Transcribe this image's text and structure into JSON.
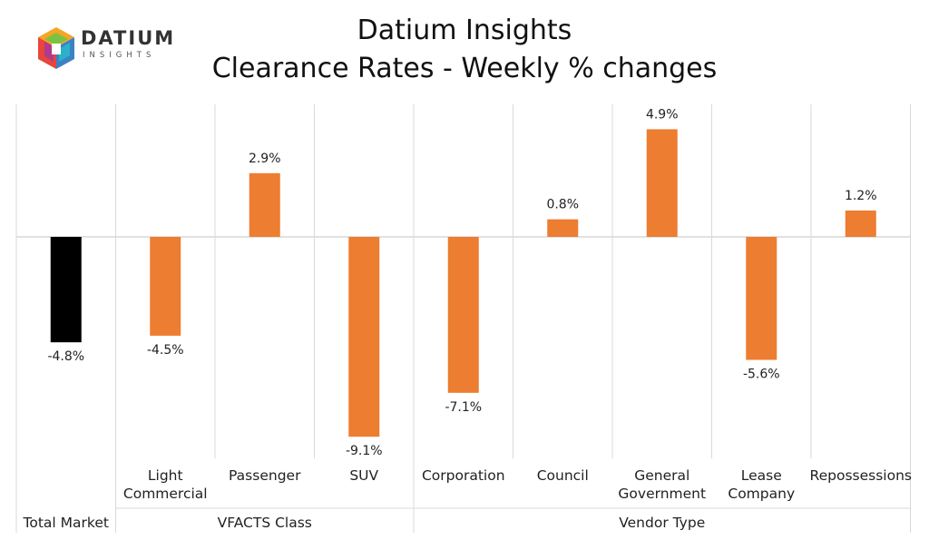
{
  "header": {
    "title_line1": "Datium Insights",
    "title_line2": "Clearance Rates - Weekly % changes"
  },
  "logo": {
    "word": "DATIUM",
    "sub": "INSIGHTS"
  },
  "colors": {
    "total_bar": "#000000",
    "segment_bar": "#ED7D31",
    "grid": "#D9D9D9",
    "zero_line": "#D9D9D9"
  },
  "chart_data": {
    "type": "bar",
    "title": "Clearance Rates - Weekly % changes",
    "ylim": [
      -10,
      10
    ],
    "categories": [
      "Total Market",
      "Light Commercial",
      "Passenger",
      "SUV",
      "Corporation",
      "Council",
      "General Government",
      "Lease Company",
      "Repossessions"
    ],
    "category_lines": [
      [],
      [
        "Light",
        "Commercial"
      ],
      [
        "Passenger"
      ],
      [
        "SUV"
      ],
      [
        "Corporation"
      ],
      [
        "Council"
      ],
      [
        "General",
        "Government"
      ],
      [
        "Lease",
        "Company"
      ],
      [
        "Repossessions"
      ]
    ],
    "values": [
      -4.8,
      -4.5,
      2.9,
      -9.1,
      -7.1,
      0.8,
      4.9,
      -5.6,
      1.2
    ],
    "data_labels": [
      "-4.8%",
      "-4.5%",
      "2.9%",
      "-9.1%",
      "-7.1%",
      "0.8%",
      "4.9%",
      "-5.6%",
      "1.2%"
    ],
    "groups": [
      {
        "label": "Total Market",
        "count": 1
      },
      {
        "label": "VFACTS Class",
        "count": 3
      },
      {
        "label": "Vendor Type",
        "count": 5
      }
    ]
  }
}
